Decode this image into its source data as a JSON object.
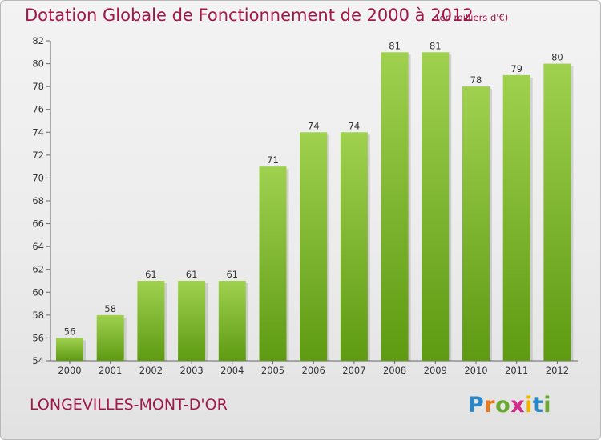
{
  "header": {
    "title": "Dotation Globale de Fonctionnement de 2000 à 2012",
    "unit": "(en milliers d'€)"
  },
  "footer": {
    "location": "LONGEVILLES-MONT-D'OR",
    "logo_text": "Proxiti",
    "logo_colors": [
      "#2b86c5",
      "#e87a1e",
      "#6aa830",
      "#d6278a",
      "#f0b400",
      "#2b86c5",
      "#6aa830"
    ]
  },
  "colors": {
    "accent": "#a0174a",
    "bar_light": "#9fd14f",
    "bar_dark": "#5e9a12",
    "axis_text": "#333333"
  },
  "chart_data": {
    "type": "bar",
    "title": "Dotation Globale de Fonctionnement de 2000 à 2012",
    "subtitle": "(en milliers d'€)",
    "xlabel": "",
    "ylabel": "",
    "categories": [
      "2000",
      "2001",
      "2002",
      "2003",
      "2004",
      "2005",
      "2006",
      "2007",
      "2008",
      "2009",
      "2010",
      "2011",
      "2012"
    ],
    "values": [
      56,
      58,
      61,
      61,
      61,
      71,
      74,
      74,
      81,
      81,
      78,
      79,
      80
    ],
    "ylim": [
      54,
      82
    ],
    "yticks": [
      54,
      56,
      58,
      60,
      62,
      64,
      66,
      68,
      70,
      72,
      74,
      76,
      78,
      80,
      82
    ],
    "grid": false,
    "data_labels": true
  }
}
